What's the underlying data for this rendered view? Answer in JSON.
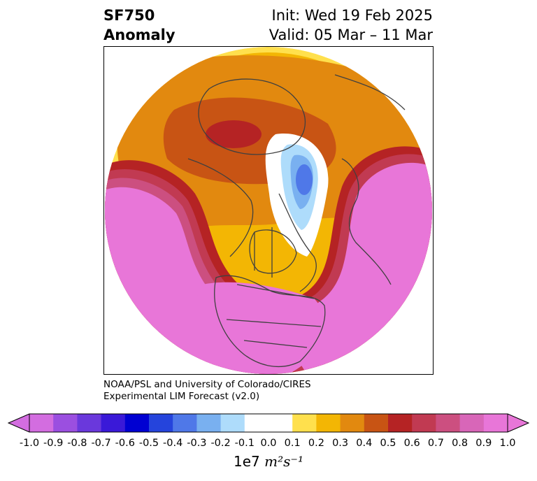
{
  "title": {
    "variable": "SF750",
    "kind": "Anomaly",
    "init": "Init: Wed 19 Feb 2025",
    "valid": "Valid: 05 Mar – 11 Mar"
  },
  "credit": {
    "line1": "NOAA/PSL and University of Colorado/CIRES",
    "line2": "Experimental LIM Forecast (v2.0)"
  },
  "colorbar": {
    "ticks": [
      "-1.0",
      "-0.9",
      "-0.8",
      "-0.7",
      "-0.6",
      "-0.5",
      "-0.4",
      "-0.3",
      "-0.2",
      "-0.1",
      "0.0",
      "0.1",
      "0.2",
      "0.3",
      "0.4",
      "0.5",
      "0.6",
      "0.7",
      "0.8",
      "0.9",
      "1.0"
    ],
    "colors": [
      "#d36de0",
      "#9b4fe0",
      "#6a38dc",
      "#3a19d8",
      "#0000d2",
      "#2544dc",
      "#4f78e8",
      "#79b0f0",
      "#aedcfb",
      "#ffffff",
      "#ffffff",
      "#ffe04d",
      "#f3b604",
      "#e2890f",
      "#c85414",
      "#b52324",
      "#c13a52",
      "#cc4f80",
      "#d866b8",
      "#e876d8"
    ],
    "extend_low_color": "#d36de0",
    "extend_high_color": "#e876d8",
    "units_prefix": "1e7 ",
    "units_italic": "m²s⁻¹"
  },
  "map": {
    "projection": "north-polar-stereographic",
    "regions": [
      {
        "name": "pacific-positive-anomaly",
        "color": "#e876d8"
      },
      {
        "name": "atlantic-europe-positive-anomaly",
        "color": "#e876d8"
      },
      {
        "name": "asia-weak-positive-anomaly",
        "color": "#e2890f"
      },
      {
        "name": "arctic-negative-anomaly",
        "color": "#4f78e8"
      }
    ]
  }
}
